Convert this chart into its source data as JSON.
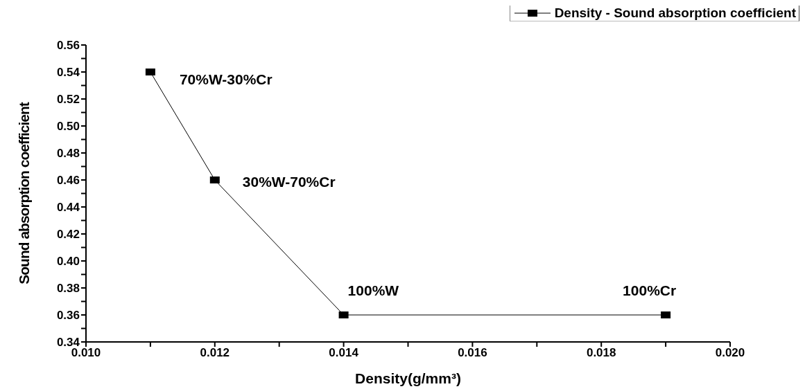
{
  "chart_data": {
    "type": "line",
    "xlabel": "Density(g/mm³)",
    "ylabel": "Sound absorption coefficient",
    "x": [
      0.011,
      0.012,
      0.014,
      0.019
    ],
    "series": [
      {
        "name": "Density - Sound absorption coefficient",
        "color": "#000000",
        "values": [
          0.54,
          0.46,
          0.36,
          0.36
        ]
      }
    ],
    "xlim": [
      0.01,
      0.02
    ],
    "xticks": [
      {
        "value": 0.01,
        "label": "0.010"
      },
      {
        "value": 0.012,
        "label": "0.012"
      },
      {
        "value": 0.014,
        "label": "0.014"
      },
      {
        "value": 0.016,
        "label": "0.016"
      },
      {
        "value": 0.018,
        "label": "0.018"
      },
      {
        "value": 0.02,
        "label": "0.020"
      }
    ],
    "ylim": [
      0.34,
      0.56
    ],
    "yticks": [
      0.34,
      0.36,
      0.38,
      {
        "value": 0.4,
        "label": "0.40"
      },
      0.42,
      0.44,
      0.46,
      0.48,
      {
        "value": 0.5,
        "label": "0.50"
      },
      0.52,
      0.54,
      0.56
    ],
    "annotations": [
      {
        "text": "70%W-30%Cr",
        "x": 0.011,
        "y": 0.54
      },
      {
        "text": "30%W-70%Cr",
        "x": 0.012,
        "y": 0.46
      },
      {
        "text": "100%W",
        "x": 0.014,
        "y": 0.36
      },
      {
        "text": "100%Cr",
        "x": 0.019,
        "y": 0.36
      }
    ],
    "marker": "square",
    "line_style": "solid",
    "grid": false,
    "legend": "top right"
  }
}
